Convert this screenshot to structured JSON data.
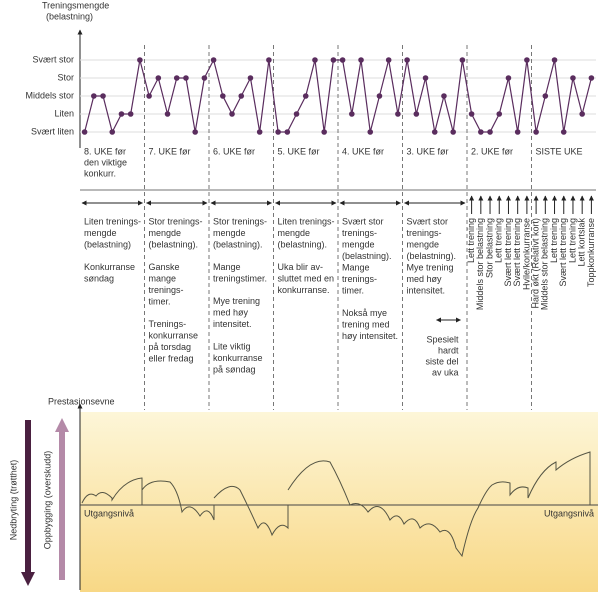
{
  "chart_data": {
    "type": "line",
    "y_title": [
      "Treningsmengde",
      "(belastning)"
    ],
    "levels": [
      "Svært liten",
      "Liten",
      "Middels stor",
      "Stor",
      "Svært stor"
    ],
    "load": [
      0,
      2,
      2,
      0,
      1,
      1,
      4,
      2,
      3,
      1,
      3,
      3,
      0,
      3,
      4,
      2,
      1,
      2,
      3,
      0,
      4,
      0,
      0,
      1,
      2,
      4,
      0,
      4,
      4,
      1,
      4,
      0,
      2,
      4,
      1,
      4,
      1,
      3,
      0,
      2,
      0,
      4,
      1,
      0,
      0,
      1,
      3,
      0,
      4,
      0,
      2,
      4,
      0,
      3,
      1,
      3
    ],
    "weeks": [
      {
        "label": [
          "8. UKE før",
          "den viktige",
          "konkurr."
        ],
        "text": [
          [
            "Liten trenings-",
            "mengde",
            "(belastning)"
          ],
          [
            "Konkurranse",
            "søndag"
          ]
        ]
      },
      {
        "label": [
          "7. UKE før"
        ],
        "text": [
          [
            "Stor trenings-",
            "mengde",
            "(belastning)."
          ],
          [
            "Ganske",
            "mange",
            "trenings-",
            "timer."
          ],
          [
            "Trenings-",
            "konkurranse",
            "på torsdag",
            "eller fredag"
          ]
        ]
      },
      {
        "label": [
          "6. UKE før"
        ],
        "text": [
          [
            "Stor trenings-",
            "mengde",
            "(belastning)."
          ],
          [
            "Mange",
            "treningstimer."
          ],
          [
            "Mye trening",
            "med høy",
            "intensitet."
          ],
          [
            "Lite viktig",
            "konkurranse",
            "på søndag"
          ]
        ]
      },
      {
        "label": [
          "5. UKE før"
        ],
        "text": [
          [
            "Liten trenings-",
            "mengde",
            "(belastning)."
          ],
          [
            "Uka blir av-",
            "sluttet med en",
            "konkurranse."
          ]
        ]
      },
      {
        "label": [
          "4. UKE før"
        ],
        "text": [
          [
            "Svært stor",
            "trenings-",
            "mengde",
            "(belastning).",
            "Mange",
            "trenings-",
            "timer."
          ],
          [
            "Nokså mye",
            "trening med",
            "høy intensitet."
          ]
        ]
      },
      {
        "label": [
          "3. UKE før"
        ],
        "text": [
          [
            "Svært stor",
            "trenings-",
            "mengde",
            "(belastning).",
            "Mye trening",
            "med høy",
            "intensitet."
          ]
        ],
        "note": [
          "Spesielt",
          "hardt",
          "siste del",
          "av uka"
        ]
      },
      {
        "label": [
          "2. UKE før"
        ],
        "days": [
          "Lett trening",
          "Middels stor belastning",
          "Stor belastning",
          "Lett trening",
          "Svært lett trening",
          "Svært lett trening",
          "Hvile/konkurranse"
        ]
      },
      {
        "label": [
          "SISTE UKE"
        ],
        "days": [
          "Hard økt (Relativt kort)",
          "Middels stor belastning",
          "Lett trening",
          "Svært lett trening",
          "Lett trening",
          "Lett kortslak",
          "Toppkonkurranse"
        ]
      }
    ],
    "performance_title": "Prestasjonsevne",
    "baseline_label": "Utgangsnivå",
    "down_label": "Nedbryting (trøtthet)",
    "up_label": "Oppbygging (overskudd)",
    "color": "#5a2d5e"
  }
}
